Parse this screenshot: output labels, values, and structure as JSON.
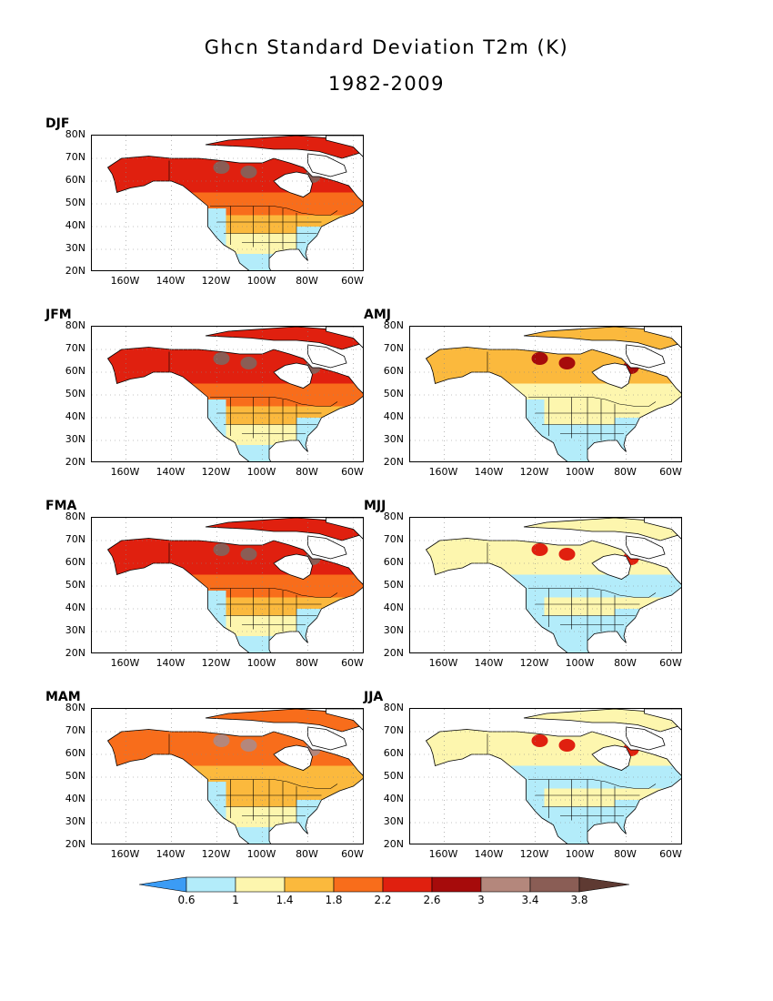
{
  "figure": {
    "title_line1": "Ghcn Standard Deviation T2m (K)",
    "title_line2": "1982-2009"
  },
  "lat_labels": [
    "80N",
    "70N",
    "60N",
    "50N",
    "40N",
    "30N",
    "20N"
  ],
  "lon_labels": [
    "160W",
    "140W",
    "120W",
    "100W",
    "80W",
    "60W"
  ],
  "panels": [
    {
      "label": "DJF",
      "intensity": 3
    },
    {
      "label": "JFM",
      "intensity": 3
    },
    {
      "label": "AMJ",
      "intensity": 1
    },
    {
      "label": "FMA",
      "intensity": 3
    },
    {
      "label": "MJJ",
      "intensity": 0
    },
    {
      "label": "MAM",
      "intensity": 2
    },
    {
      "label": "JJA",
      "intensity": 0
    }
  ],
  "colorbar": {
    "labels": [
      "0.6",
      "1",
      "1.4",
      "1.8",
      "2.2",
      "2.6",
      "3",
      "3.4",
      "3.8"
    ],
    "colors": [
      "#3b9cf5",
      "#b3ecfa",
      "#fdf6ae",
      "#fbb93d",
      "#f86d1b",
      "#e0200f",
      "#a60b0b",
      "#b4877c",
      "#8a5d55",
      "#5e3a32"
    ]
  }
}
